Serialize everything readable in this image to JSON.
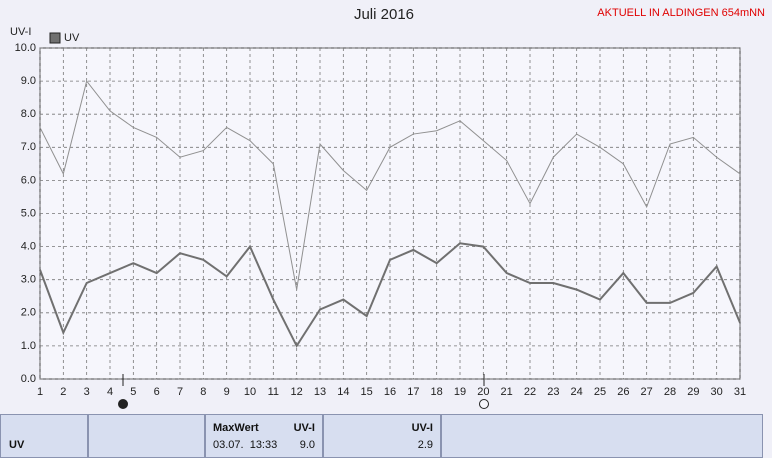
{
  "chart_data": {
    "type": "line",
    "title": "Juli 2016",
    "subtitle": "AKTUELL IN ALDINGEN 654mNN",
    "y_label": "UV-I",
    "x": [
      1,
      2,
      3,
      4,
      5,
      6,
      7,
      8,
      9,
      10,
      11,
      12,
      13,
      14,
      15,
      16,
      17,
      18,
      19,
      20,
      21,
      22,
      23,
      24,
      25,
      26,
      27,
      28,
      29,
      30,
      31
    ],
    "series": [
      {
        "color": "#909090",
        "values": [
          7.6,
          6.2,
          9.0,
          8.1,
          7.6,
          7.3,
          6.7,
          6.9,
          7.6,
          7.2,
          6.5,
          2.7,
          7.1,
          6.3,
          5.7,
          7.0,
          7.4,
          7.5,
          7.8,
          7.2,
          6.6,
          5.3,
          6.7,
          7.4,
          7.0,
          6.5,
          5.2,
          7.1,
          7.3,
          6.7,
          6.2
        ]
      },
      {
        "name": "UV",
        "color": "#707070",
        "values": [
          3.3,
          1.4,
          2.9,
          3.2,
          3.5,
          3.2,
          3.8,
          3.6,
          3.1,
          4.0,
          2.4,
          1.0,
          2.1,
          2.4,
          1.9,
          3.6,
          3.9,
          3.5,
          4.1,
          4.0,
          3.2,
          2.9,
          2.9,
          2.7,
          2.4,
          3.2,
          2.3,
          2.3,
          2.6,
          3.4,
          1.7
        ]
      }
    ],
    "xlim": [
      1,
      31
    ],
    "xticks": [
      1,
      2,
      3,
      4,
      5,
      6,
      7,
      8,
      9,
      10,
      11,
      12,
      13,
      14,
      15,
      16,
      17,
      18,
      19,
      20,
      21,
      22,
      23,
      24,
      25,
      26,
      27,
      28,
      29,
      30,
      31
    ],
    "ylim": [
      0,
      10
    ],
    "yticks": [
      {
        "value": 0,
        "label": "0.0"
      },
      {
        "value": 1,
        "label": "1.0"
      },
      {
        "value": 2,
        "label": "2.0"
      },
      {
        "value": 3,
        "label": "3.0"
      },
      {
        "value": 4,
        "label": "4.0"
      },
      {
        "value": 5,
        "label": "5.0"
      },
      {
        "value": 6,
        "label": "6.0"
      },
      {
        "value": 7,
        "label": "7.0"
      },
      {
        "value": 8,
        "label": "8.0"
      },
      {
        "value": 9,
        "label": "9.0"
      },
      {
        "value": 10,
        "label": "10.0"
      }
    ],
    "grid": true
  },
  "footer": {
    "label": "UV",
    "max_header": "MaxWert",
    "max_unit": "UV-I",
    "max_time": "03.07.  13:33",
    "max_value": "9.0",
    "current_unit": "UV-I",
    "current_value": "2.9"
  }
}
